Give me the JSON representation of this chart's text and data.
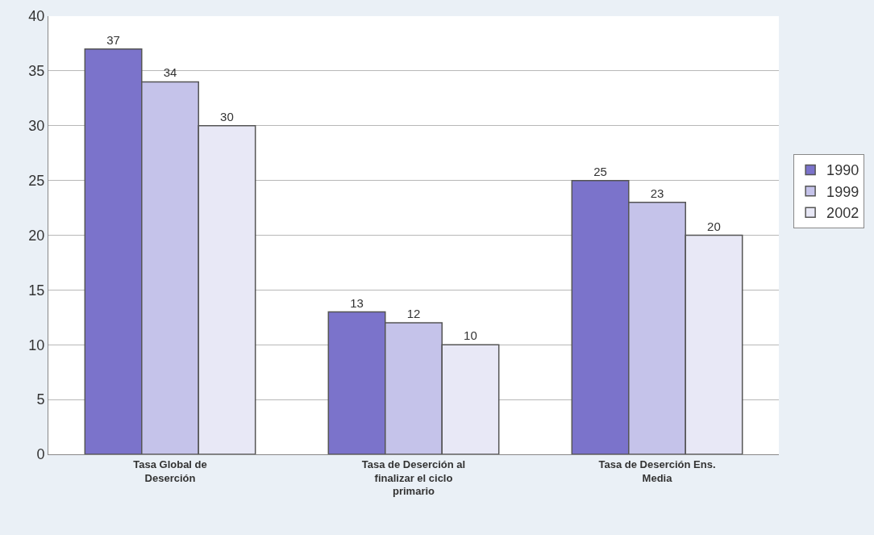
{
  "chart_data": {
    "type": "bar",
    "categories": [
      "Tasa Global de Deserción",
      "Tasa de Deserción al finalizar el ciclo primario",
      "Tasa de Deserción Ens. Media"
    ],
    "series": [
      {
        "name": "1990",
        "color": "#7b73cb",
        "values": [
          37,
          13,
          25
        ]
      },
      {
        "name": "1999",
        "color": "#c5c3ea",
        "values": [
          34,
          12,
          23
        ]
      },
      {
        "name": "2002",
        "color": "#e8e8f6",
        "values": [
          30,
          10,
          20
        ]
      }
    ],
    "ylim": [
      0,
      40
    ],
    "yticks": [
      0,
      5,
      10,
      15,
      20,
      25,
      30,
      35,
      40
    ],
    "grid": "y",
    "legend": "right",
    "data_labels": true
  }
}
